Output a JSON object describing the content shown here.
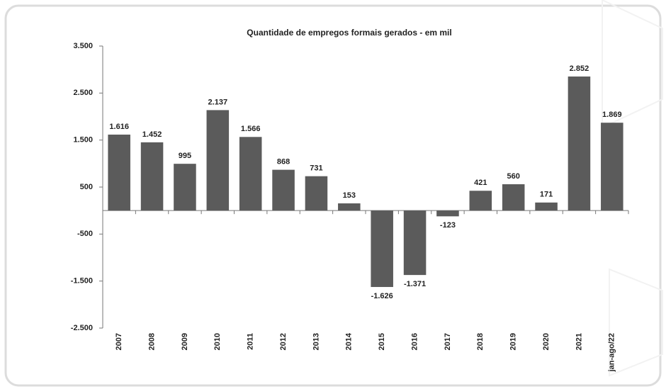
{
  "chart_data": {
    "type": "bar",
    "title": "Quantidade de empregos formais gerados  - em mil",
    "categories": [
      "2007",
      "2008",
      "2009",
      "2010",
      "2011",
      "2012",
      "2013",
      "2014",
      "2015",
      "2016",
      "2017",
      "2018",
      "2019",
      "2020",
      "2021",
      "jan-ago/22"
    ],
    "values": [
      1616,
      1452,
      995,
      2137,
      1566,
      868,
      731,
      153,
      -1626,
      -1371,
      -123,
      421,
      560,
      171,
      2852,
      1869
    ],
    "value_labels": [
      "1.616",
      "1.452",
      "995",
      "2.137",
      "1.566",
      "868",
      "731",
      "153",
      "-1.626",
      "-1.371",
      "-123",
      "421",
      "560",
      "171",
      "2.852",
      "1.869"
    ],
    "color": "#5b5b5b",
    "ylim": [
      -2500,
      3500
    ],
    "yticks": [
      {
        "value": -2500,
        "label": "-2.500"
      },
      {
        "value": -1500,
        "label": "-1.500"
      },
      -500,
      500,
      {
        "value": 1500,
        "label": "1.500"
      },
      {
        "value": 2500,
        "label": "2.500"
      },
      {
        "value": 3500,
        "label": "3.500"
      }
    ],
    "grid": false
  }
}
